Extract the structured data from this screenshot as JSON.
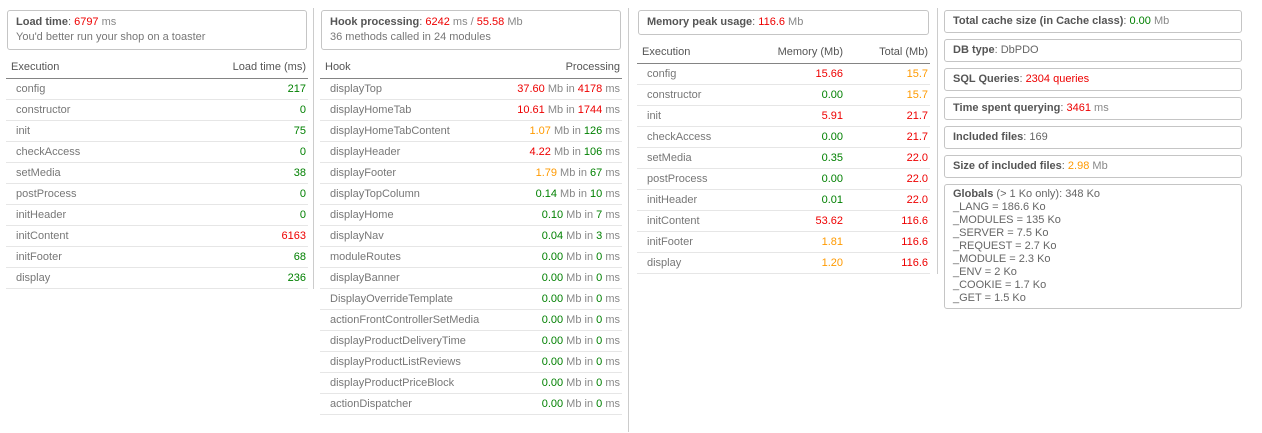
{
  "misc": {
    "sep": ": "
  },
  "colors": {
    "green": "#008000",
    "orange": "#ff9a00",
    "red": "#ee0000",
    "plain": "#666666"
  },
  "load_panel": {
    "box": {
      "label": "Load time",
      "value": "6797",
      "unit": " ms",
      "note": "You'd better run your shop on a toaster"
    },
    "headers": {
      "name": "Execution",
      "value": "Load time (ms)"
    },
    "rows": [
      {
        "name": "config",
        "time": "217",
        "color": "green"
      },
      {
        "name": "constructor",
        "time": "0",
        "color": "green"
      },
      {
        "name": "init",
        "time": "75",
        "color": "green"
      },
      {
        "name": "checkAccess",
        "time": "0",
        "color": "green"
      },
      {
        "name": "setMedia",
        "time": "38",
        "color": "green"
      },
      {
        "name": "postProcess",
        "time": "0",
        "color": "green"
      },
      {
        "name": "initHeader",
        "time": "0",
        "color": "green"
      },
      {
        "name": "initContent",
        "time": "6163",
        "color": "red"
      },
      {
        "name": "initFooter",
        "time": "68",
        "color": "green"
      },
      {
        "name": "display",
        "time": "236",
        "color": "green"
      }
    ]
  },
  "hook_panel": {
    "box": {
      "label": "Hook processing",
      "value_ms": "6242",
      "mid": " ms / ",
      "value_mb": "55.58",
      "unit": " Mb",
      "note": "36 methods called in 24 modules"
    },
    "headers": {
      "name": "Hook",
      "value": "Processing"
    },
    "units": {
      "mb_in": " Mb in ",
      "ms": " ms"
    },
    "rows": [
      {
        "name": "displayTop",
        "mb": "37.60",
        "mb_color": "red",
        "ms": "4178",
        "ms_color": "red"
      },
      {
        "name": "displayHomeTab",
        "mb": "10.61",
        "mb_color": "red",
        "ms": "1744",
        "ms_color": "red"
      },
      {
        "name": "displayHomeTabContent",
        "mb": "1.07",
        "mb_color": "orange",
        "ms": "126",
        "ms_color": "green"
      },
      {
        "name": "displayHeader",
        "mb": "4.22",
        "mb_color": "red",
        "ms": "106",
        "ms_color": "green"
      },
      {
        "name": "displayFooter",
        "mb": "1.79",
        "mb_color": "orange",
        "ms": "67",
        "ms_color": "green"
      },
      {
        "name": "displayTopColumn",
        "mb": "0.14",
        "mb_color": "green",
        "ms": "10",
        "ms_color": "green"
      },
      {
        "name": "displayHome",
        "mb": "0.10",
        "mb_color": "green",
        "ms": "7",
        "ms_color": "green"
      },
      {
        "name": "displayNav",
        "mb": "0.04",
        "mb_color": "green",
        "ms": "3",
        "ms_color": "green"
      },
      {
        "name": "moduleRoutes",
        "mb": "0.00",
        "mb_color": "green",
        "ms": "0",
        "ms_color": "green"
      },
      {
        "name": "displayBanner",
        "mb": "0.00",
        "mb_color": "green",
        "ms": "0",
        "ms_color": "green"
      },
      {
        "name": "DisplayOverrideTemplate",
        "mb": "0.00",
        "mb_color": "green",
        "ms": "0",
        "ms_color": "green"
      },
      {
        "name": "actionFrontControllerSetMedia",
        "mb": "0.00",
        "mb_color": "green",
        "ms": "0",
        "ms_color": "green"
      },
      {
        "name": "displayProductDeliveryTime",
        "mb": "0.00",
        "mb_color": "green",
        "ms": "0",
        "ms_color": "green"
      },
      {
        "name": "displayProductListReviews",
        "mb": "0.00",
        "mb_color": "green",
        "ms": "0",
        "ms_color": "green"
      },
      {
        "name": "displayProductPriceBlock",
        "mb": "0.00",
        "mb_color": "green",
        "ms": "0",
        "ms_color": "green"
      },
      {
        "name": "actionDispatcher",
        "mb": "0.00",
        "mb_color": "green",
        "ms": "0",
        "ms_color": "green"
      }
    ]
  },
  "memory_panel": {
    "box": {
      "label": "Memory peak usage",
      "value": "116.6",
      "unit": " Mb"
    },
    "headers": {
      "name": "Execution",
      "memory": "Memory (Mb)",
      "total": "Total (Mb)"
    },
    "rows": [
      {
        "name": "config",
        "memory": "15.66",
        "memory_color": "red",
        "total": "15.7",
        "total_color": "orange"
      },
      {
        "name": "constructor",
        "memory": "0.00",
        "memory_color": "green",
        "total": "15.7",
        "total_color": "orange"
      },
      {
        "name": "init",
        "memory": "5.91",
        "memory_color": "red",
        "total": "21.7",
        "total_color": "red"
      },
      {
        "name": "checkAccess",
        "memory": "0.00",
        "memory_color": "green",
        "total": "21.7",
        "total_color": "red"
      },
      {
        "name": "setMedia",
        "memory": "0.35",
        "memory_color": "green",
        "total": "22.0",
        "total_color": "red"
      },
      {
        "name": "postProcess",
        "memory": "0.00",
        "memory_color": "green",
        "total": "22.0",
        "total_color": "red"
      },
      {
        "name": "initHeader",
        "memory": "0.01",
        "memory_color": "green",
        "total": "22.0",
        "total_color": "red"
      },
      {
        "name": "initContent",
        "memory": "53.62",
        "memory_color": "red",
        "total": "116.6",
        "total_color": "red"
      },
      {
        "name": "initFooter",
        "memory": "1.81",
        "memory_color": "orange",
        "total": "116.6",
        "total_color": "red"
      },
      {
        "name": "display",
        "memory": "1.20",
        "memory_color": "orange",
        "total": "116.6",
        "total_color": "red"
      }
    ]
  },
  "info_boxes": [
    {
      "label": "Total cache size (in Cache class)",
      "value": "0.00",
      "value_color": "green",
      "suffix": " Mb"
    },
    {
      "label": "DB type",
      "value": "DbPDO",
      "value_color": "plain",
      "suffix": ""
    },
    {
      "label": "SQL Queries",
      "value": "2304 queries",
      "value_color": "red",
      "suffix": ""
    },
    {
      "label": "Time spent querying",
      "value": "3461",
      "value_color": "red",
      "suffix": " ms"
    },
    {
      "label": "Included files",
      "value": "169",
      "value_color": "plain",
      "suffix": ""
    },
    {
      "label": "Size of included files",
      "value": "2.98",
      "value_color": "orange",
      "suffix": " Mb"
    }
  ],
  "globals_box": {
    "label": "Globals",
    "note": "(> 1 Ko only): 348 Ko",
    "items": [
      "_LANG = 186.6 Ko",
      "_MODULES = 135 Ko",
      "_SERVER = 7.5 Ko",
      "_REQUEST = 2.7 Ko",
      "_MODULE = 2.3 Ko",
      "_ENV = 2 Ko",
      "_COOKIE = 1.7 Ko",
      "_GET = 1.5 Ko"
    ]
  }
}
